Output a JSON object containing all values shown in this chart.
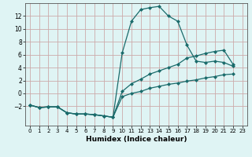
{
  "background_color": "#dff4f4",
  "grid_color": "#ccaaaa",
  "line_color": "#1a6b6b",
  "xlabel": "Humidex (Indice chaleur)",
  "xlim": [
    -0.5,
    23.5
  ],
  "ylim": [
    -5,
    14
  ],
  "xticks": [
    0,
    1,
    2,
    3,
    4,
    5,
    6,
    7,
    8,
    9,
    10,
    11,
    12,
    13,
    14,
    15,
    16,
    17,
    18,
    19,
    20,
    21,
    22,
    23
  ],
  "yticks": [
    -2,
    0,
    2,
    4,
    6,
    8,
    10,
    12
  ],
  "line1_x": [
    0,
    1,
    2,
    3,
    4,
    5,
    6,
    7,
    8,
    9,
    10,
    11,
    12,
    13,
    14,
    15,
    16,
    17,
    18,
    19,
    20,
    21,
    22
  ],
  "line1_y": [
    -1.8,
    -2.2,
    -2.1,
    -2.1,
    -3.0,
    -3.2,
    -3.2,
    -3.3,
    -3.5,
    -3.7,
    6.3,
    11.2,
    13.0,
    13.3,
    13.5,
    12.0,
    11.2,
    7.5,
    5.0,
    4.8,
    5.0,
    4.8,
    4.2
  ],
  "line2_x": [
    0,
    1,
    2,
    3,
    4,
    5,
    6,
    7,
    8,
    9,
    10,
    11,
    12,
    13,
    14,
    15,
    16,
    17,
    18,
    19,
    20,
    21,
    22
  ],
  "line2_y": [
    -1.8,
    -2.2,
    -2.1,
    -2.1,
    -3.0,
    -3.2,
    -3.2,
    -3.3,
    -3.5,
    -3.7,
    0.3,
    1.5,
    2.2,
    3.0,
    3.5,
    4.0,
    4.5,
    5.5,
    5.8,
    6.2,
    6.5,
    6.7,
    4.5
  ],
  "line3_x": [
    0,
    1,
    2,
    3,
    4,
    5,
    6,
    7,
    8,
    9,
    10,
    11,
    12,
    13,
    14,
    15,
    16,
    17,
    18,
    19,
    20,
    21,
    22
  ],
  "line3_y": [
    -1.8,
    -2.2,
    -2.1,
    -2.1,
    -3.0,
    -3.2,
    -3.2,
    -3.3,
    -3.5,
    -3.7,
    -0.5,
    0.0,
    0.3,
    0.8,
    1.1,
    1.4,
    1.6,
    1.9,
    2.1,
    2.4,
    2.6,
    2.9,
    3.0
  ]
}
